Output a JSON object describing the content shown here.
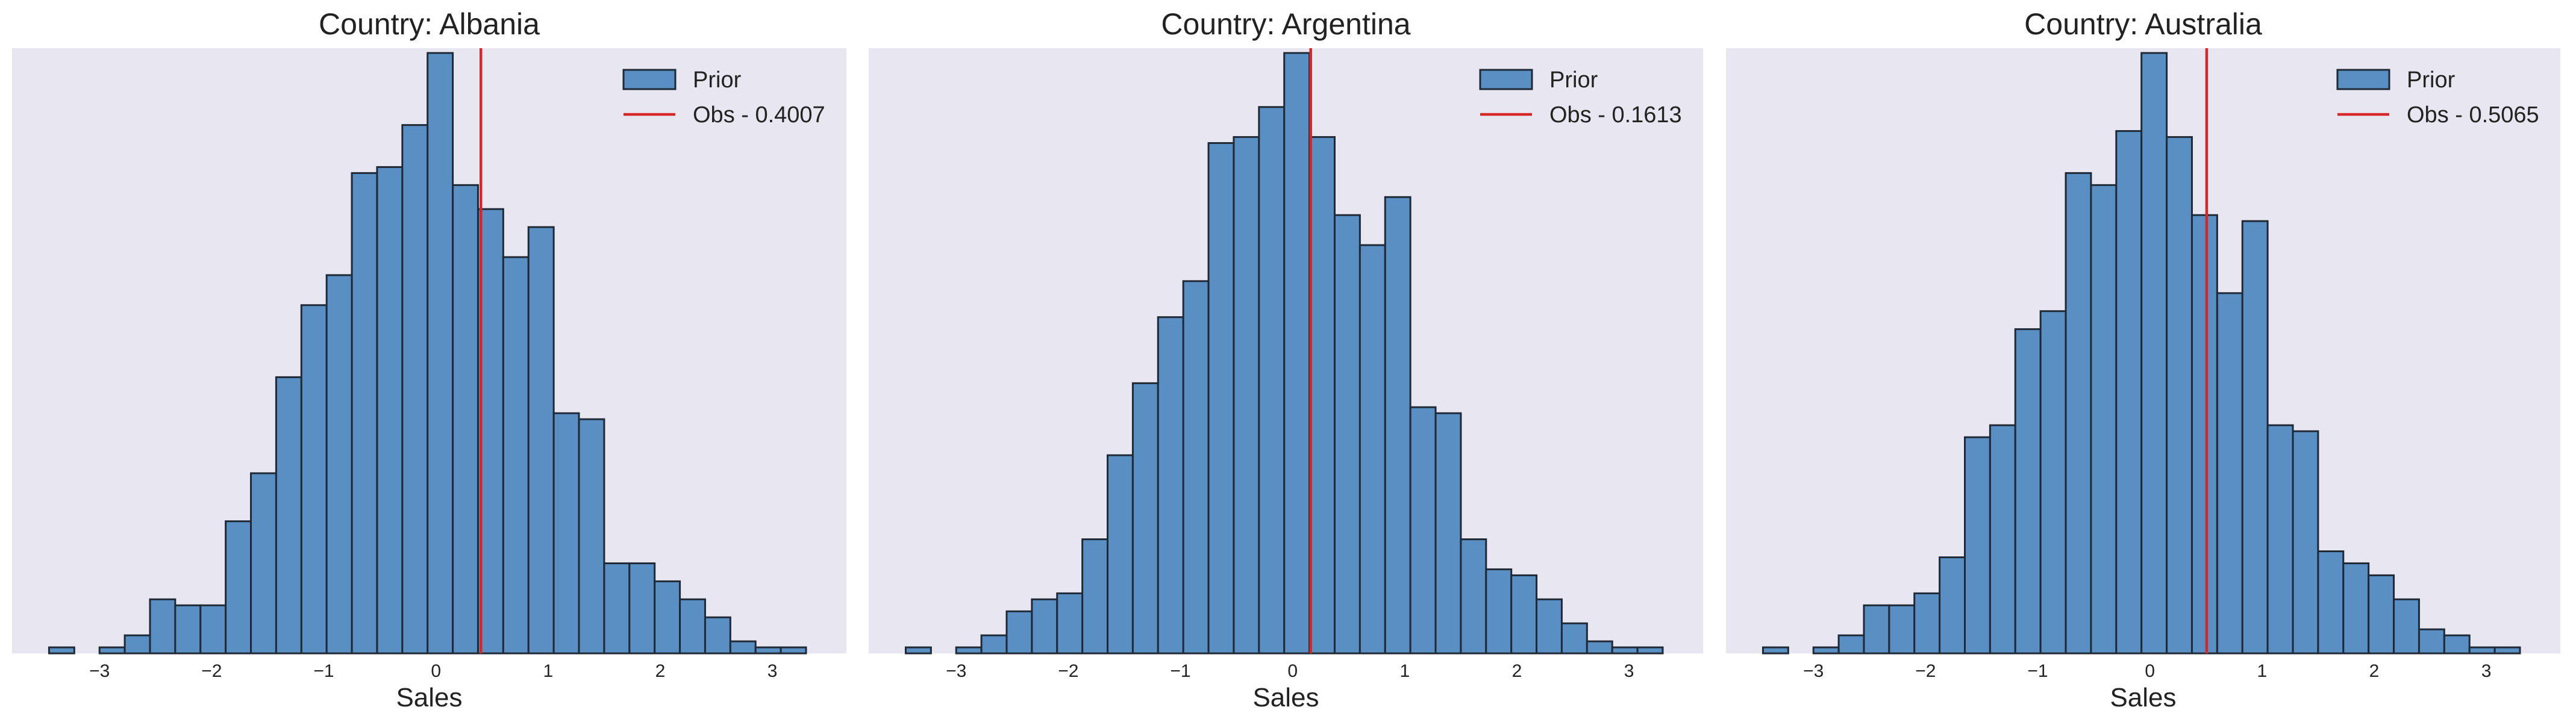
{
  "style": {
    "panel_bg": "#e8e6f0",
    "bar_fill": "#5a8fc3",
    "bar_edge": "#1f2a36",
    "obs_line": "#d62728",
    "text": "#222222"
  },
  "chart_data": [
    {
      "type": "bar",
      "subtype": "histogram",
      "title": "Country: Albania",
      "xlabel": "Sales",
      "ylabel": "",
      "xlim": [
        -3.78,
        3.66
      ],
      "ylim": [
        0,
        100
      ],
      "xticks": [
        -3,
        -2,
        -1,
        0,
        1,
        2,
        3
      ],
      "tick_labels": [
        "−3",
        "−2",
        "−1",
        "0",
        "1",
        "2",
        "3"
      ],
      "grid": false,
      "y_axis_visible": false,
      "legend_position": "top-right",
      "bin_edges": [
        -3.45,
        -3.225,
        -3.0,
        -2.775,
        -2.55,
        -2.325,
        -2.1,
        -1.875,
        -1.65,
        -1.425,
        -1.2,
        -0.975,
        -0.75,
        -0.525,
        -0.3,
        -0.075,
        0.15,
        0.375,
        0.6,
        0.825,
        1.05,
        1.275,
        1.5,
        1.725,
        1.95,
        2.175,
        2.4,
        2.625,
        2.85,
        3.075,
        3.3
      ],
      "counts": [
        1,
        0,
        1,
        3,
        9,
        8,
        8,
        22,
        30,
        46,
        58,
        63,
        80,
        81,
        88,
        100,
        78,
        74,
        66,
        71,
        40,
        39,
        15,
        15,
        12,
        9,
        6,
        2,
        1,
        1
      ],
      "series": [
        {
          "name": "Prior",
          "kind": "histogram"
        },
        {
          "name": "Obs - 0.4007",
          "kind": "vline",
          "x": 0.4007
        }
      ]
    },
    {
      "type": "bar",
      "subtype": "histogram",
      "title": "Country: Argentina",
      "xlabel": "Sales",
      "ylabel": "",
      "xlim": [
        -3.78,
        3.66
      ],
      "ylim": [
        0,
        100
      ],
      "xticks": [
        -3,
        -2,
        -1,
        0,
        1,
        2,
        3
      ],
      "tick_labels": [
        "−3",
        "−2",
        "−1",
        "0",
        "1",
        "2",
        "3"
      ],
      "grid": false,
      "y_axis_visible": false,
      "legend_position": "top-right",
      "bin_edges": [
        -3.45,
        -3.225,
        -3.0,
        -2.775,
        -2.55,
        -2.325,
        -2.1,
        -1.875,
        -1.65,
        -1.425,
        -1.2,
        -0.975,
        -0.75,
        -0.525,
        -0.3,
        -0.075,
        0.15,
        0.375,
        0.6,
        0.825,
        1.05,
        1.275,
        1.5,
        1.725,
        1.95,
        2.175,
        2.4,
        2.625,
        2.85,
        3.075,
        3.3
      ],
      "counts": [
        1,
        0,
        1,
        3,
        7,
        9,
        10,
        19,
        33,
        45,
        56,
        62,
        85,
        86,
        91,
        100,
        86,
        73,
        68,
        76,
        41,
        40,
        19,
        14,
        13,
        9,
        5,
        2,
        1,
        1
      ],
      "series": [
        {
          "name": "Prior",
          "kind": "histogram"
        },
        {
          "name": "Obs - 0.1613",
          "kind": "vline",
          "x": 0.1613
        }
      ]
    },
    {
      "type": "bar",
      "subtype": "histogram",
      "title": "Country: Australia",
      "xlabel": "Sales",
      "ylabel": "",
      "xlim": [
        -3.78,
        3.66
      ],
      "ylim": [
        0,
        100
      ],
      "xticks": [
        -3,
        -2,
        -1,
        0,
        1,
        2,
        3
      ],
      "tick_labels": [
        "−3",
        "−2",
        "−1",
        "0",
        "1",
        "2",
        "3"
      ],
      "grid": false,
      "y_axis_visible": false,
      "legend_position": "top-right",
      "bin_edges": [
        -3.45,
        -3.225,
        -3.0,
        -2.775,
        -2.55,
        -2.325,
        -2.1,
        -1.875,
        -1.65,
        -1.425,
        -1.2,
        -0.975,
        -0.75,
        -0.525,
        -0.3,
        -0.075,
        0.15,
        0.375,
        0.6,
        0.825,
        1.05,
        1.275,
        1.5,
        1.725,
        1.95,
        2.175,
        2.4,
        2.625,
        2.85,
        3.075,
        3.3
      ],
      "counts": [
        1,
        0,
        1,
        3,
        8,
        8,
        10,
        16,
        36,
        38,
        54,
        57,
        80,
        78,
        87,
        100,
        86,
        73,
        60,
        72,
        38,
        37,
        17,
        15,
        13,
        9,
        4,
        3,
        1,
        1
      ],
      "series": [
        {
          "name": "Prior",
          "kind": "histogram"
        },
        {
          "name": "Obs - 0.5065",
          "kind": "vline",
          "x": 0.5065
        }
      ]
    }
  ]
}
